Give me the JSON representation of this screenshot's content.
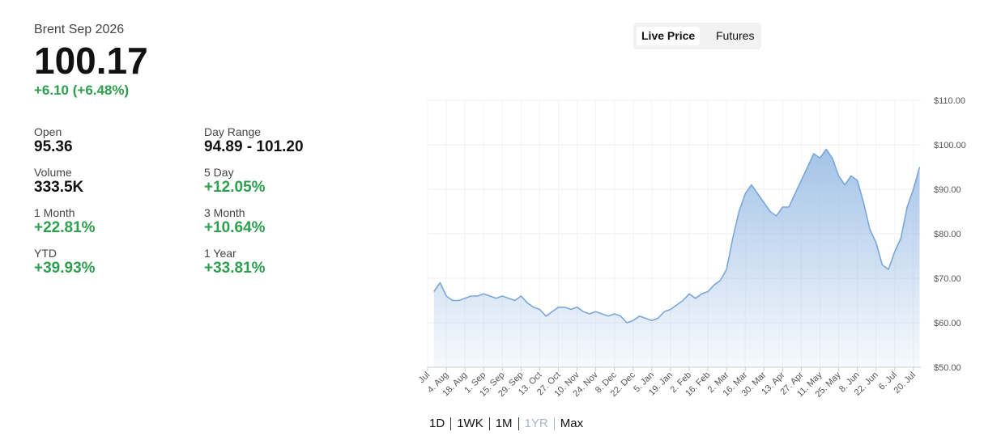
{
  "header": {
    "symbol": "Brent Sep 2026",
    "price": "100.17",
    "change": "+6.10 (+6.48%)"
  },
  "stats": [
    {
      "label": "Open",
      "value": "95.36",
      "positive": false
    },
    {
      "label": "Day Range",
      "value": "94.89 - 101.20",
      "positive": false
    },
    {
      "label": "Volume",
      "value": "333.5K",
      "positive": false
    },
    {
      "label": "5 Day",
      "value": "+12.05%",
      "positive": true
    },
    {
      "label": "1 Month",
      "value": "+22.81%",
      "positive": true
    },
    {
      "label": "3 Month",
      "value": "+10.64%",
      "positive": true
    },
    {
      "label": "YTD",
      "value": "+39.93%",
      "positive": true
    },
    {
      "label": "1 Year",
      "value": "+33.81%",
      "positive": true
    }
  ],
  "tabs": [
    "Live Price",
    "Futures"
  ],
  "ranges": [
    "1D",
    "1WK",
    "1M",
    "1YR",
    "Max"
  ],
  "chart_data": {
    "type": "area",
    "color": "#7aa7d9",
    "grid": true,
    "categories": [
      "Jul",
      null,
      null,
      "4. Aug",
      null,
      null,
      "18. Aug",
      null,
      null,
      "1. Sep",
      null,
      null,
      "15. Sep",
      null,
      null,
      "29. Sep",
      null,
      null,
      "13. Oct",
      null,
      null,
      "27. Oct",
      null,
      null,
      "10. Nov",
      null,
      null,
      "24. Nov",
      null,
      null,
      "8. Dec",
      null,
      null,
      "22. Dec",
      null,
      null,
      "5. Jan",
      null,
      null,
      "19. Jan",
      null,
      null,
      "2. Feb",
      null,
      null,
      "16. Feb",
      null,
      null,
      "2. Mar",
      null,
      null,
      "16. Mar",
      null,
      null,
      "30. Mar",
      null,
      null,
      "13. Apr",
      null,
      null,
      "27. Apr",
      null,
      null,
      "11. May",
      null,
      null,
      "25. May",
      null,
      null,
      "8. Jun",
      null,
      null,
      "22. Jun",
      null,
      null,
      "6. Jul",
      null,
      null,
      "20. Jul",
      null
    ],
    "values": [
      null,
      67,
      69,
      66,
      65,
      65,
      65.5,
      66,
      66,
      66.5,
      66,
      65.5,
      66,
      65.5,
      65,
      66,
      64.5,
      63.5,
      63,
      61.5,
      62.5,
      63.5,
      63.5,
      63,
      63.5,
      62.5,
      62,
      62.5,
      62,
      61.5,
      62,
      61.5,
      60,
      60.5,
      61.5,
      61,
      60.5,
      61,
      62.5,
      63,
      64,
      65,
      66.5,
      65.5,
      66.5,
      67,
      68.5,
      69.5,
      72,
      79,
      85,
      89,
      91,
      89,
      87,
      85,
      84,
      86,
      86,
      89,
      92,
      95,
      98,
      97,
      99,
      97,
      93,
      91,
      93,
      92,
      87,
      81,
      78,
      73,
      72,
      76,
      79,
      86,
      90,
      95
    ],
    "ylim": [
      50,
      110
    ],
    "yticks": [
      {
        "value": 50,
        "label": "$50.00"
      },
      {
        "value": 60,
        "label": "$60.00"
      },
      {
        "value": 70,
        "label": "$70.00"
      },
      {
        "value": 80,
        "label": "$80.00"
      },
      {
        "value": 90,
        "label": "$90.00"
      },
      {
        "value": 100,
        "label": "$100.00"
      },
      {
        "value": 110,
        "label": "$110.00"
      }
    ]
  }
}
